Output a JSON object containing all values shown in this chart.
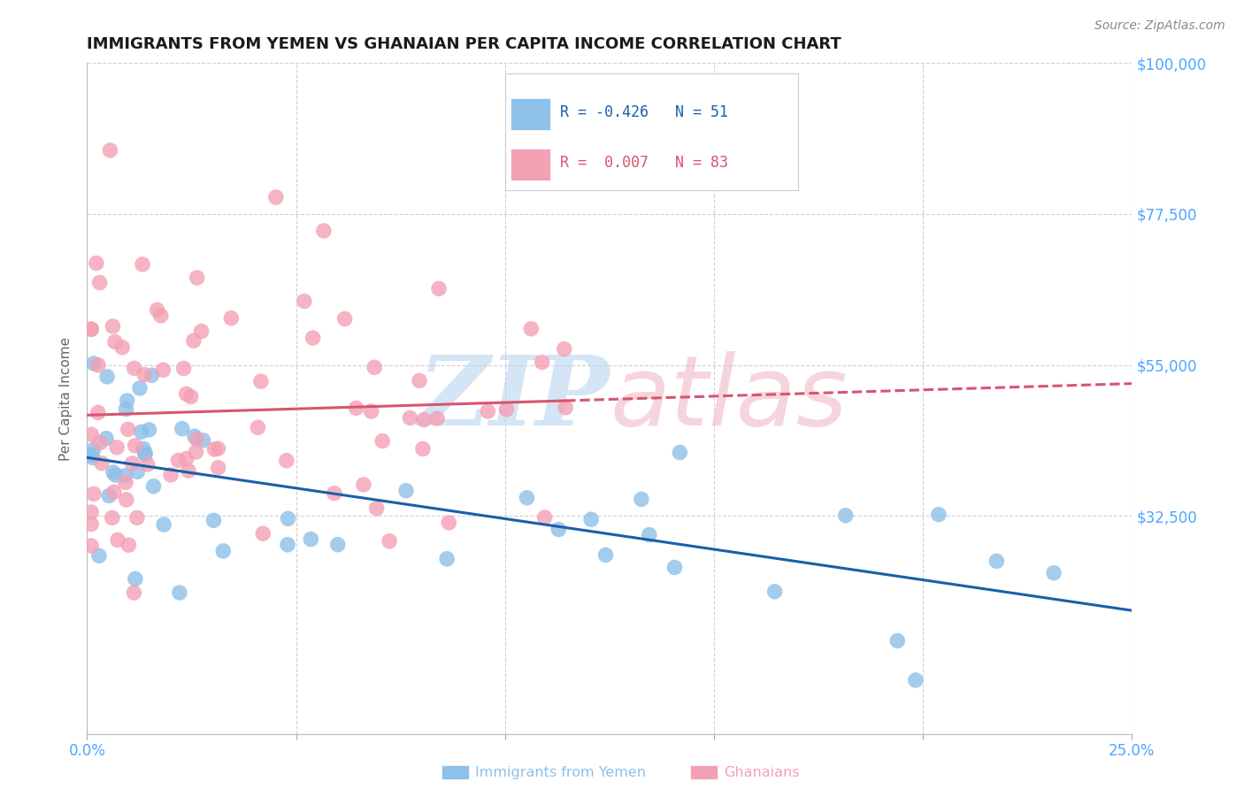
{
  "title": "IMMIGRANTS FROM YEMEN VS GHANAIAN PER CAPITA INCOME CORRELATION CHART",
  "source": "Source: ZipAtlas.com",
  "ylabel": "Per Capita Income",
  "xlim": [
    0,
    0.25
  ],
  "ylim": [
    0,
    100000
  ],
  "yticks": [
    0,
    32500,
    55000,
    77500,
    100000
  ],
  "ytick_labels": [
    "",
    "$32,500",
    "$55,000",
    "$77,500",
    "$100,000"
  ],
  "xticks": [
    0.0,
    0.05,
    0.1,
    0.15,
    0.2,
    0.25
  ],
  "xtick_labels": [
    "0.0%",
    "",
    "",
    "",
    "",
    "25.0%"
  ],
  "blue_label": "Immigrants from Yemen",
  "pink_label": "Ghanaians",
  "blue_R": -0.426,
  "blue_N": 51,
  "pink_R": 0.007,
  "pink_N": 83,
  "blue_color": "#8ec0e8",
  "pink_color": "#f4a0b5",
  "blue_line_color": "#1a5fa8",
  "pink_line_color": "#d9546e",
  "axis_color": "#4da6ff",
  "title_color": "#1a1a1a",
  "background_color": "#ffffff",
  "watermark_zip_color": "#b8d4f0",
  "watermark_atlas_color": "#f0b8c8",
  "grid_color": "#d0d0d0",
  "source_color": "#888888"
}
